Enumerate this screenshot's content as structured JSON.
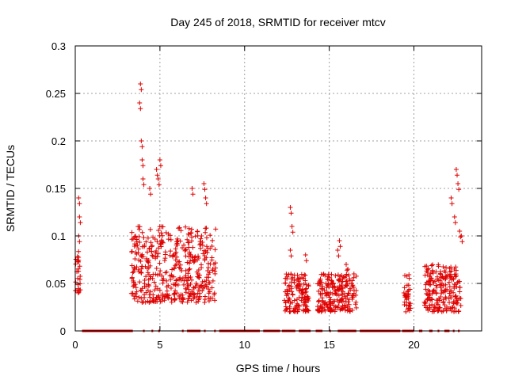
{
  "chart_data": {
    "type": "scatter",
    "title": "Day 245 of 2018, SRMTID for receiver mtcv",
    "xlabel": "GPS time / hours",
    "ylabel": "SRMTID / TECUs",
    "xlim": [
      0,
      24
    ],
    "ylim": [
      0,
      0.3
    ],
    "xticks": [
      0,
      5,
      10,
      15,
      20
    ],
    "xtick_labels": [
      "0",
      "5",
      "10",
      "15",
      "20"
    ],
    "yticks": [
      0,
      0.05,
      0.1,
      0.15,
      0.2,
      0.25,
      0.3
    ],
    "ytick_labels": [
      "0",
      "0.05",
      "0.1",
      "0.15",
      "0.2",
      "0.25",
      "0.3"
    ],
    "grid": true,
    "marker": "+",
    "color": "#e00000",
    "series": [
      {
        "name": "SRMTID",
        "clusters": [
          {
            "x": [
              0.0,
              0.3
            ],
            "y": [
              0.04,
              0.085
            ],
            "outliers": [
              [
                0.2,
                0.14
              ],
              [
                0.25,
                0.12
              ],
              [
                0.2,
                0.1
              ]
            ]
          },
          {
            "x": [
              3.3,
              8.3
            ],
            "y": [
              0.03,
              0.11
            ],
            "outliers": [
              [
                3.85,
                0.26
              ],
              [
                3.8,
                0.24
              ],
              [
                3.9,
                0.2
              ],
              [
                3.95,
                0.18
              ],
              [
                4.0,
                0.16
              ],
              [
                4.8,
                0.17
              ],
              [
                4.9,
                0.16
              ],
              [
                5.0,
                0.18
              ],
              [
                6.9,
                0.15
              ],
              [
                7.6,
                0.155
              ],
              [
                7.7,
                0.14
              ],
              [
                4.4,
                0.15
              ]
            ]
          },
          {
            "x": [
              12.3,
              13.8
            ],
            "y": [
              0.02,
              0.06
            ],
            "outliers": [
              [
                12.7,
                0.13
              ],
              [
                12.8,
                0.11
              ],
              [
                12.7,
                0.085
              ],
              [
                13.6,
                0.08
              ]
            ]
          },
          {
            "x": [
              14.3,
              16.6
            ],
            "y": [
              0.02,
              0.06
            ],
            "outliers": [
              [
                15.6,
                0.095
              ],
              [
                15.5,
                0.085
              ],
              [
                16.0,
                0.07
              ],
              [
                16.1,
                0.065
              ]
            ]
          },
          {
            "x": [
              19.4,
              19.8
            ],
            "y": [
              0.02,
              0.06
            ],
            "outliers": []
          },
          {
            "x": [
              20.6,
              22.8
            ],
            "y": [
              0.02,
              0.07
            ],
            "outliers": [
              [
                22.5,
                0.17
              ],
              [
                22.6,
                0.155
              ],
              [
                22.2,
                0.14
              ],
              [
                22.4,
                0.12
              ],
              [
                22.7,
                0.105
              ],
              [
                22.8,
                0.1
              ]
            ]
          }
        ],
        "zero_runs": [
          [
            0.4,
            3.4
          ],
          [
            4.0,
            4.1
          ],
          [
            4.5,
            4.6
          ],
          [
            4.9,
            5.0
          ],
          [
            6.3,
            6.4
          ],
          [
            6.6,
            7.4
          ],
          [
            7.6,
            7.7
          ],
          [
            8.2,
            8.3
          ],
          [
            8.5,
            10.9
          ],
          [
            11.1,
            12.1
          ],
          [
            12.2,
            13.0
          ],
          [
            13.2,
            13.9
          ],
          [
            14.2,
            14.6
          ],
          [
            15.0,
            15.1
          ],
          [
            15.5,
            16.6
          ],
          [
            16.8,
            19.2
          ],
          [
            19.3,
            20.0
          ],
          [
            20.3,
            20.5
          ],
          [
            20.9,
            21.1
          ],
          [
            21.4,
            21.5
          ],
          [
            21.8,
            22.1
          ],
          [
            22.3,
            22.4
          ],
          [
            22.6,
            22.7
          ]
        ]
      }
    ]
  }
}
